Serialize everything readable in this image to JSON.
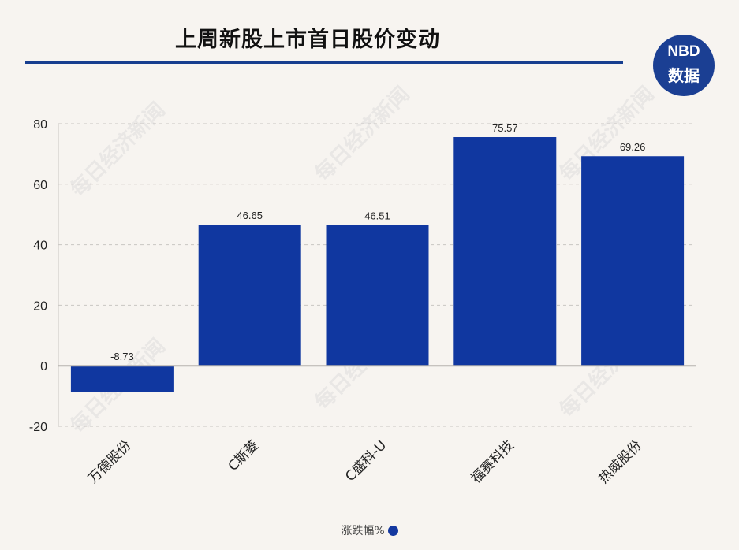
{
  "title": "上周新股上市首日股价变动",
  "logo": {
    "line1": "NBD",
    "line2": "数据"
  },
  "watermark": "每日经济新闻",
  "chart_data": {
    "type": "bar",
    "categories": [
      "万德股份",
      "C斯菱",
      "C盛科-U",
      "福赛科技",
      "热威股份"
    ],
    "series": [
      {
        "name": "涨跌幅%",
        "values": [
          -8.73,
          46.65,
          46.51,
          75.57,
          69.26
        ]
      }
    ],
    "data_labels": [
      "-8.73",
      "46.65",
      "46.51",
      "75.57",
      "69.26"
    ],
    "yticks": [
      80,
      60,
      40,
      20,
      0,
      -20
    ],
    "ylim": [
      -20,
      80
    ],
    "grid": true,
    "legend_position": "bottom",
    "bar_color": "#1037a0"
  }
}
